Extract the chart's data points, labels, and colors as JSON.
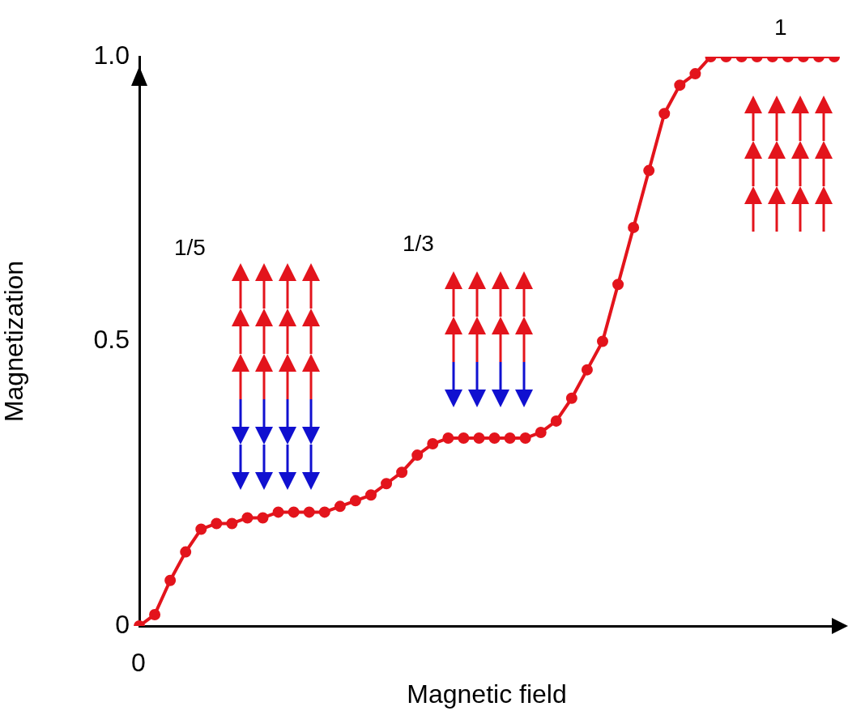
{
  "chart_data": {
    "type": "line",
    "xlabel": "Magnetic field",
    "ylabel": "Magnetization",
    "categories": [
      null,
      null,
      null,
      null,
      null,
      null,
      null,
      null,
      null,
      null,
      null,
      null,
      null,
      null,
      null,
      null,
      null,
      null,
      null,
      null,
      null,
      null,
      null,
      null,
      null,
      null,
      null,
      null,
      null,
      null,
      null,
      null,
      null,
      null,
      null,
      null,
      null,
      null,
      null,
      null,
      null,
      null,
      null,
      null,
      null,
      null
    ],
    "series": [
      {
        "color": "#e3141c",
        "values": [
          0,
          0.02,
          0.08,
          0.13,
          0.17,
          0.18,
          0.18,
          0.19,
          0.19,
          0.2,
          0.2,
          0.2,
          0.2,
          0.21,
          0.22,
          0.23,
          0.25,
          0.27,
          0.3,
          0.32,
          0.33,
          0.33,
          0.33,
          0.33,
          0.33,
          0.33,
          0.34,
          0.36,
          0.4,
          0.45,
          0.5,
          0.6,
          0.7,
          0.8,
          0.9,
          0.95,
          0.97,
          1,
          1,
          1,
          1,
          1,
          1,
          1,
          1,
          1
        ]
      }
    ],
    "ylim": [
      0,
      1
    ],
    "yticks": [
      0,
      0.5,
      {
        "value": 1,
        "label": "1.0"
      }
    ],
    "grid": false,
    "legend": false,
    "marker": "circle",
    "line_style": "solid",
    "annotations": [
      "0",
      "1/5",
      "1/3",
      "1"
    ]
  }
}
